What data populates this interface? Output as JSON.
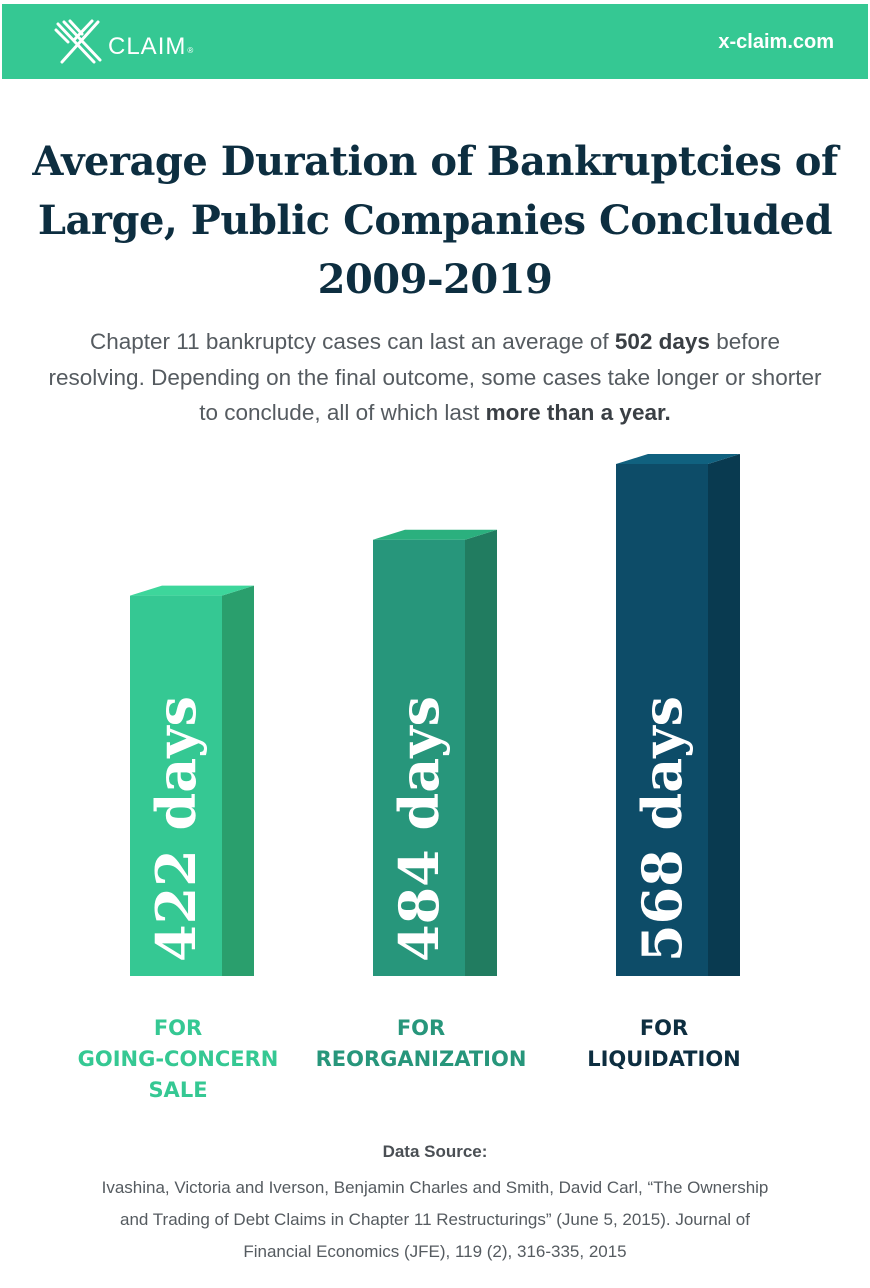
{
  "header": {
    "logo_text": "CLAIM",
    "logo_reg": "®",
    "site": "x-claim.com",
    "colors": {
      "band": "#35c893"
    }
  },
  "title": "Average Duration of Bankruptcies of Large, Public Companies Concluded 2009-2019",
  "subtitle": {
    "part1": "Chapter 11 bankruptcy cases can last an average of ",
    "bold1": "502 days",
    "part2": " before resolving. Depending on the final outcome, some cases take longer or shorter to conclude, all of which last ",
    "bold2": "more than a year."
  },
  "chart_data": {
    "type": "bar",
    "title": "",
    "xlabel": "",
    "ylabel": "",
    "ylim": [
      0,
      568
    ],
    "categories": [
      "FOR GOING-CONCERN SALE",
      "FOR REORGANIZATION",
      "FOR LIQUIDATION"
    ],
    "values": [
      422,
      484,
      568
    ],
    "unit": "days",
    "data_labels": [
      "422 days",
      "484 days",
      "568 days"
    ],
    "grid": false,
    "legend": "none",
    "bar_colors": [
      {
        "front": "#35c893",
        "side": "#2a9f6d",
        "top": "#3dd69b"
      },
      {
        "front": "#27967b",
        "side": "#217c60",
        "top": "#2bb07e"
      },
      {
        "front": "#0d4c68",
        "side": "#093a50",
        "top": "#10617f"
      }
    ],
    "label_colors": [
      "#35c893",
      "#27967b",
      "#0d2e40"
    ],
    "category_lines": [
      [
        "FOR",
        "GOING-CONCERN",
        "SALE"
      ],
      [
        "FOR",
        "REORGANIZATION"
      ],
      [
        "FOR",
        "LIQUIDATION"
      ]
    ]
  },
  "source": {
    "heading": "Data Source:",
    "line1": "Ivashina, Victoria and Iverson, Benjamin Charles and Smith, David Carl, “The Ownership",
    "line2": "and Trading of Debt Claims in Chapter 11 Restructurings” (June 5, 2015). Journal of",
    "line3": "Financial Economics (JFE), 119 (2), 316-335, 2015"
  }
}
